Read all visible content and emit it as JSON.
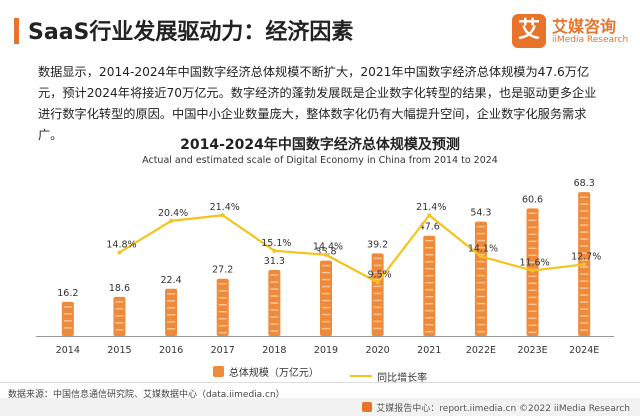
{
  "header": {
    "title": "SaaS行业发展驱动力：经济因素",
    "brand_logo_char": "艾",
    "brand_name": "艾媒咨询",
    "brand_sub": "iiMedia Research"
  },
  "intro": "数据显示，2014-2024年中国数字经济总体规模不断扩大，2021年中国数字经济总体规模为47.6万亿元，预计2024年将接近70万亿元。数字经济的蓬勃发展既是企业数字化转型的结果，也是驱动更多企业进行数字化转型的原因。中国中小企业数量庞大，整体数字化仍有大幅提升空间，企业数字化服务需求广。",
  "chart_data": {
    "type": "bar",
    "title": "2014-2024年中国数字经济总体规模及预测",
    "subtitle": "Actual and estimated scale of Digital Economy in China  from 2014 to 2024",
    "categories": [
      "2014",
      "2015",
      "2016",
      "2017",
      "2018",
      "2019",
      "2020",
      "2021",
      "2022E",
      "2023E",
      "2024E"
    ],
    "series": [
      {
        "name": "总体规模（万亿元）",
        "type": "bar",
        "axis": "left",
        "values": [
          16.2,
          18.6,
          22.4,
          27.2,
          31.3,
          35.8,
          39.2,
          47.6,
          54.3,
          60.6,
          68.3
        ]
      },
      {
        "name": "同比增长率",
        "type": "line",
        "axis": "right",
        "values": [
          null,
          14.8,
          20.4,
          21.4,
          15.1,
          14.4,
          9.5,
          21.4,
          14.1,
          11.6,
          12.7
        ],
        "labels": [
          "",
          "14.8%",
          "20.4%",
          "21.4%",
          "15.1%",
          "14.4%",
          "9.5%",
          "21.4%",
          "14.1%",
          "11.6%",
          "12.7%"
        ]
      }
    ],
    "ylim_left": [
      0,
      75
    ],
    "ylim_right": [
      0,
      28
    ],
    "colors": {
      "bar": "#ef8a3a",
      "bar_stripe": "#f8c9a0",
      "line": "#f6c21c",
      "axis": "#999999"
    }
  },
  "legend": {
    "bar_label": "总体规模（万亿元）",
    "line_label": "同比增长率"
  },
  "source": "数据来源：中国信息通信研究院、艾媒数据中心（data.iimedia.cn）",
  "footer": "艾媒报告中心：report.iimedia.cn  ©2022 iiMedia Research"
}
